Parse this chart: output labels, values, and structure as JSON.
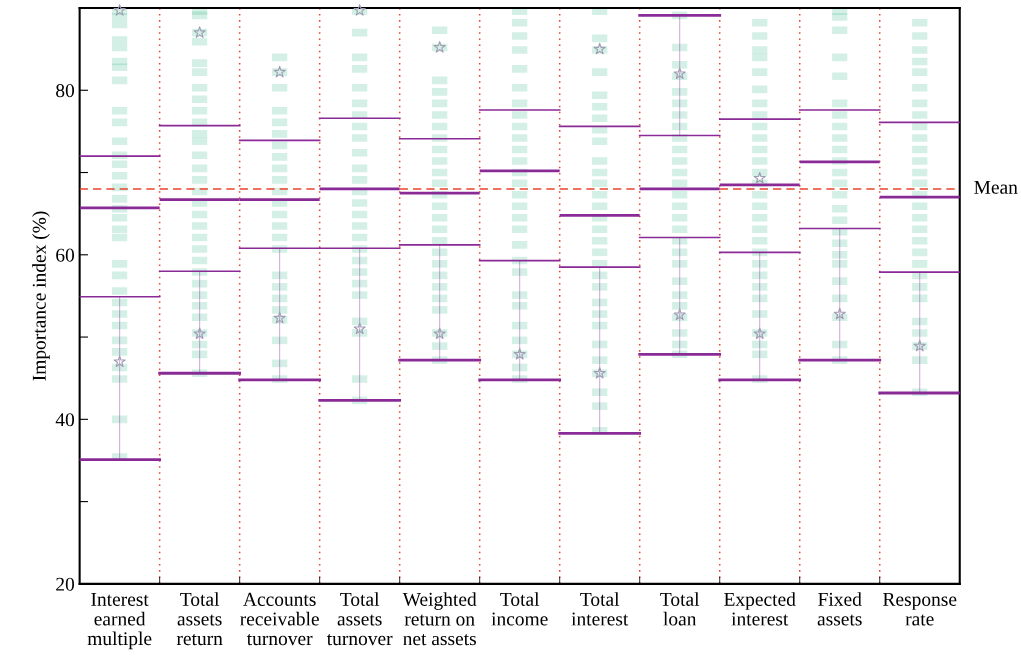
{
  "chart_data": {
    "type": "box",
    "ylabel": "Importance index (%)",
    "categories": [
      "Interest\nearned\nmultiple",
      "Total\nassets\nreturn",
      "Accounts\nreceivable\nturnover",
      "Total\nassets\nturnover",
      "Weighted\nreturn on\nnet assets",
      "Total\nincome",
      "Total\ninterest",
      "Total\nloan",
      "Expected\ninterest",
      "Fixed\nassets",
      "Response\nrate"
    ],
    "ylim": [
      20,
      90
    ],
    "yticks": [
      20,
      {
        "value": 30,
        "label": null
      },
      40,
      {
        "value": 50,
        "label": null
      },
      60,
      {
        "value": 70,
        "label": null
      },
      80
    ],
    "grid": "x",
    "ref_lines": [
      {
        "axis": "y",
        "value": 68,
        "label": "Mean",
        "color": "#e8452c",
        "line_style": "dashed"
      }
    ],
    "series": [
      {
        "type": "scatter",
        "marker": "square",
        "color": "#3cb48a",
        "x": [
          "Interest\nearned\nmultiple",
          "Interest\nearned\nmultiple",
          "Interest\nearned\nmultiple",
          "Interest\nearned\nmultiple",
          "Interest\nearned\nmultiple",
          "Interest\nearned\nmultiple",
          "Interest\nearned\nmultiple",
          "Interest\nearned\nmultiple",
          "Interest\nearned\nmultiple",
          "Interest\nearned\nmultiple",
          "Interest\nearned\nmultiple",
          "Interest\nearned\nmultiple",
          "Interest\nearned\nmultiple",
          "Interest\nearned\nmultiple",
          "Interest\nearned\nmultiple",
          "Interest\nearned\nmultiple",
          "Interest\nearned\nmultiple",
          "Interest\nearned\nmultiple",
          "Interest\nearned\nmultiple",
          "Interest\nearned\nmultiple",
          "Interest\nearned\nmultiple",
          "Interest\nearned\nmultiple",
          "Interest\nearned\nmultiple",
          "Interest\nearned\nmultiple",
          "Interest\nearned\nmultiple",
          "Interest\nearned\nmultiple",
          "Interest\nearned\nmultiple",
          "Interest\nearned\nmultiple",
          "Interest\nearned\nmultiple",
          "Interest\nearned\nmultiple",
          "Interest\nearned\nmultiple",
          "Interest\nearned\nmultiple",
          "Total\nassets\nreturn",
          "Total\nassets\nreturn",
          "Total\nassets\nreturn",
          "Total\nassets\nreturn",
          "Total\nassets\nreturn",
          "Total\nassets\nreturn",
          "Total\nassets\nreturn",
          "Total\nassets\nreturn",
          "Total\nassets\nreturn",
          "Total\nassets\nreturn",
          "Total\nassets\nreturn",
          "Total\nassets\nreturn",
          "Total\nassets\nreturn",
          "Total\nassets\nreturn",
          "Total\nassets\nreturn",
          "Total\nassets\nreturn",
          "Total\nassets\nreturn",
          "Total\nassets\nreturn",
          "Total\nassets\nreturn",
          "Total\nassets\nreturn",
          "Total\nassets\nreturn",
          "Total\nassets\nreturn",
          "Total\nassets\nreturn",
          "Total\nassets\nreturn",
          "Total\nassets\nreturn",
          "Total\nassets\nreturn",
          "Total\nassets\nreturn",
          "Total\nassets\nreturn",
          "Total\nassets\nreturn",
          "Total\nassets\nreturn",
          "Total\nassets\nreturn",
          "Accounts\nreceivable\nturnover",
          "Accounts\nreceivable\nturnover",
          "Accounts\nreceivable\nturnover",
          "Accounts\nreceivable\nturnover",
          "Accounts\nreceivable\nturnover",
          "Accounts\nreceivable\nturnover",
          "Accounts\nreceivable\nturnover",
          "Accounts\nreceivable\nturnover",
          "Accounts\nreceivable\nturnover",
          "Accounts\nreceivable\nturnover",
          "Accounts\nreceivable\nturnover",
          "Accounts\nreceivable\nturnover",
          "Accounts\nreceivable\nturnover",
          "Accounts\nreceivable\nturnover",
          "Accounts\nreceivable\nturnover",
          "Accounts\nreceivable\nturnover",
          "Accounts\nreceivable\nturnover",
          "Accounts\nreceivable\nturnover",
          "Accounts\nreceivable\nturnover",
          "Accounts\nreceivable\nturnover",
          "Accounts\nreceivable\nturnover",
          "Accounts\nreceivable\nturnover",
          "Accounts\nreceivable\nturnover",
          "Accounts\nreceivable\nturnover",
          "Total\nassets\nturnover",
          "Total\nassets\nturnover",
          "Total\nassets\nturnover",
          "Total\nassets\nturnover",
          "Total\nassets\nturnover",
          "Total\nassets\nturnover",
          "Total\nassets\nturnover",
          "Total\nassets\nturnover",
          "Total\nassets\nturnover",
          "Total\nassets\nturnover",
          "Total\nassets\nturnover",
          "Total\nassets\nturnover",
          "Total\nassets\nturnover",
          "Total\nassets\nturnover",
          "Total\nassets\nturnover",
          "Total\nassets\nturnover",
          "Total\nassets\nturnover",
          "Total\nassets\nturnover",
          "Total\nassets\nturnover",
          "Total\nassets\nturnover",
          "Total\nassets\nturnover",
          "Total\nassets\nturnover",
          "Total\nassets\nturnover",
          "Total\nassets\nturnover",
          "Total\nassets\nturnover",
          "Total\nassets\nturnover",
          "Weighted\nreturn on\nnet assets",
          "Weighted\nreturn on\nnet assets",
          "Weighted\nreturn on\nnet assets",
          "Weighted\nreturn on\nnet assets",
          "Weighted\nreturn on\nnet assets",
          "Weighted\nreturn on\nnet assets",
          "Weighted\nreturn on\nnet assets",
          "Weighted\nreturn on\nnet assets",
          "Weighted\nreturn on\nnet assets",
          "Weighted\nreturn on\nnet assets",
          "Weighted\nreturn on\nnet assets",
          "Weighted\nreturn on\nnet assets",
          "Weighted\nreturn on\nnet assets",
          "Weighted\nreturn on\nnet assets",
          "Weighted\nreturn on\nnet assets",
          "Weighted\nreturn on\nnet assets",
          "Weighted\nreturn on\nnet assets",
          "Weighted\nreturn on\nnet assets",
          "Weighted\nreturn on\nnet assets",
          "Weighted\nreturn on\nnet assets",
          "Weighted\nreturn on\nnet assets",
          "Weighted\nreturn on\nnet assets",
          "Weighted\nreturn on\nnet assets",
          "Weighted\nreturn on\nnet assets",
          "Weighted\nreturn on\nnet assets",
          "Weighted\nreturn on\nnet assets",
          "Total\nincome",
          "Total\nincome",
          "Total\nincome",
          "Total\nincome",
          "Total\nincome",
          "Total\nincome",
          "Total\nincome",
          "Total\nincome",
          "Total\nincome",
          "Total\nincome",
          "Total\nincome",
          "Total\nincome",
          "Total\nincome",
          "Total\nincome",
          "Total\nincome",
          "Total\nincome",
          "Total\nincome",
          "Total\nincome",
          "Total\nincome",
          "Total\nincome",
          "Total\nincome",
          "Total\nincome",
          "Total\nincome",
          "Total\nincome",
          "Total\nincome",
          "Total\nincome",
          "Total\nincome",
          "Total\nincome",
          "Total\ninterest",
          "Total\ninterest",
          "Total\ninterest",
          "Total\ninterest",
          "Total\ninterest",
          "Total\ninterest",
          "Total\ninterest",
          "Total\ninterest",
          "Total\ninterest",
          "Total\ninterest",
          "Total\ninterest",
          "Total\ninterest",
          "Total\ninterest",
          "Total\ninterest",
          "Total\ninterest",
          "Total\ninterest",
          "Total\ninterest",
          "Total\ninterest",
          "Total\ninterest",
          "Total\ninterest",
          "Total\ninterest",
          "Total\ninterest",
          "Total\ninterest",
          "Total\ninterest",
          "Total\ninterest",
          "Total\ninterest",
          "Total\ninterest",
          "Total\ninterest",
          "Total\ninterest",
          "Total\ninterest",
          "Total\nloan",
          "Total\nloan",
          "Total\nloan",
          "Total\nloan",
          "Total\nloan",
          "Total\nloan",
          "Total\nloan",
          "Total\nloan",
          "Total\nloan",
          "Total\nloan",
          "Total\nloan",
          "Total\nloan",
          "Total\nloan",
          "Total\nloan",
          "Total\nloan",
          "Total\nloan",
          "Total\nloan",
          "Total\nloan",
          "Total\nloan",
          "Total\nloan",
          "Total\nloan",
          "Total\nloan",
          "Total\nloan",
          "Total\nloan",
          "Total\nloan",
          "Total\nloan",
          "Total\nloan",
          "Expected\ninterest",
          "Expected\ninterest",
          "Expected\ninterest",
          "Expected\ninterest",
          "Expected\ninterest",
          "Expected\ninterest",
          "Expected\ninterest",
          "Expected\ninterest",
          "Expected\ninterest",
          "Expected\ninterest",
          "Expected\ninterest",
          "Expected\ninterest",
          "Expected\ninterest",
          "Expected\ninterest",
          "Expected\ninterest",
          "Expected\ninterest",
          "Expected\ninterest",
          "Expected\ninterest",
          "Expected\ninterest",
          "Expected\ninterest",
          "Expected\ninterest",
          "Expected\ninterest",
          "Expected\ninterest",
          "Expected\ninterest",
          "Expected\ninterest",
          "Expected\ninterest",
          "Expected\ninterest",
          "Expected\ninterest",
          "Expected\ninterest",
          "Fixed\nassets",
          "Fixed\nassets",
          "Fixed\nassets",
          "Fixed\nassets",
          "Fixed\nassets",
          "Fixed\nassets",
          "Fixed\nassets",
          "Fixed\nassets",
          "Fixed\nassets",
          "Fixed\nassets",
          "Fixed\nassets",
          "Fixed\nassets",
          "Fixed\nassets",
          "Fixed\nassets",
          "Fixed\nassets",
          "Fixed\nassets",
          "Fixed\nassets",
          "Fixed\nassets",
          "Fixed\nassets",
          "Fixed\nassets",
          "Fixed\nassets",
          "Fixed\nassets",
          "Fixed\nassets",
          "Fixed\nassets",
          "Fixed\nassets",
          "Response\nrate",
          "Response\nrate",
          "Response\nrate",
          "Response\nrate",
          "Response\nrate",
          "Response\nrate",
          "Response\nrate",
          "Response\nrate",
          "Response\nrate",
          "Response\nrate",
          "Response\nrate",
          "Response\nrate",
          "Response\nrate",
          "Response\nrate",
          "Response\nrate",
          "Response\nrate",
          "Response\nrate",
          "Response\nrate",
          "Response\nrate",
          "Response\nrate",
          "Response\nrate",
          "Response\nrate",
          "Response\nrate",
          "Response\nrate",
          "Response\nrate",
          "Response\nrate",
          "Response\nrate",
          "Response\nrate",
          "Response\nrate"
        ],
        "values": [
          89.6,
          88.9,
          88.0,
          86.1,
          85.2,
          83.5,
          82.8,
          81.2,
          77.5,
          76.1,
          73.8,
          72.1,
          71.0,
          69.6,
          68.2,
          66.8,
          65.6,
          64.5,
          63.1,
          62.1,
          58.9,
          57.5,
          55.6,
          54.2,
          52.8,
          51.4,
          49.6,
          48.2,
          46.3,
          44.9,
          40.0,
          35.4,
          89.6,
          89.1,
          87.0,
          85.9,
          83.3,
          82.2,
          80.3,
          78.9,
          77.5,
          76.1,
          74.7,
          73.8,
          72.1,
          70.5,
          69.1,
          67.7,
          66.3,
          64.9,
          63.5,
          62.1,
          60.7,
          59.3,
          57.9,
          56.5,
          55.1,
          53.8,
          52.4,
          50.5,
          49.1,
          47.9,
          45.6,
          84.0,
          82.2,
          80.3,
          77.5,
          76.1,
          74.7,
          73.3,
          71.9,
          70.5,
          69.1,
          67.7,
          66.3,
          64.9,
          63.5,
          62.1,
          60.7,
          57.5,
          56.1,
          54.7,
          53.3,
          52.1,
          49.6,
          46.8,
          44.9,
          89.6,
          87.0,
          84.0,
          82.6,
          80.3,
          78.4,
          77.0,
          75.6,
          74.2,
          72.4,
          70.5,
          69.1,
          67.7,
          66.3,
          64.9,
          63.5,
          62.1,
          60.7,
          59.3,
          57.9,
          56.5,
          55.1,
          51.9,
          50.5,
          44.9,
          42.3,
          87.3,
          85.2,
          81.2,
          79.8,
          78.4,
          77.0,
          75.6,
          74.2,
          72.8,
          71.4,
          70.0,
          68.7,
          67.3,
          65.9,
          64.5,
          63.1,
          61.7,
          60.3,
          58.9,
          57.5,
          56.1,
          54.7,
          53.3,
          50.5,
          48.9,
          47.2,
          89.6,
          88.2,
          86.6,
          84.9,
          82.6,
          80.3,
          78.4,
          77.0,
          75.6,
          74.2,
          72.8,
          71.4,
          70.0,
          68.7,
          67.3,
          65.9,
          64.5,
          63.1,
          61.2,
          59.3,
          57.9,
          55.1,
          53.8,
          51.4,
          49.6,
          47.9,
          46.3,
          44.9,
          89.6,
          86.3,
          84.9,
          82.2,
          79.4,
          78.0,
          76.6,
          75.2,
          73.8,
          71.4,
          70.0,
          68.7,
          67.3,
          65.9,
          64.5,
          63.1,
          61.7,
          60.3,
          58.9,
          57.5,
          56.1,
          54.2,
          52.8,
          51.4,
          49.1,
          47.2,
          45.6,
          43.3,
          41.6,
          38.6,
          89.1,
          85.2,
          83.1,
          81.7,
          79.8,
          78.4,
          77.0,
          75.6,
          74.2,
          72.8,
          71.4,
          70.0,
          68.7,
          67.3,
          65.9,
          64.5,
          63.1,
          61.7,
          60.3,
          58.9,
          56.8,
          55.1,
          53.8,
          52.4,
          50.5,
          49.1,
          47.9,
          88.2,
          86.6,
          84.9,
          84.0,
          82.2,
          80.1,
          78.4,
          77.0,
          75.6,
          74.2,
          72.8,
          71.4,
          70.0,
          68.7,
          67.3,
          65.9,
          64.5,
          63.1,
          61.7,
          60.3,
          58.9,
          57.5,
          56.1,
          54.7,
          52.8,
          50.5,
          49.1,
          47.9,
          44.9,
          89.6,
          88.9,
          87.3,
          84.0,
          81.7,
          78.4,
          77.0,
          75.6,
          74.2,
          72.8,
          71.4,
          70.0,
          68.7,
          67.3,
          65.6,
          64.2,
          62.8,
          61.4,
          60.0,
          58.9,
          56.8,
          54.7,
          52.4,
          49.1,
          47.2,
          88.2,
          86.6,
          84.9,
          83.5,
          82.2,
          80.3,
          78.4,
          77.0,
          75.6,
          74.2,
          72.8,
          71.4,
          70.0,
          68.7,
          67.3,
          65.9,
          64.5,
          63.1,
          61.7,
          60.3,
          58.9,
          57.5,
          56.1,
          54.7,
          51.9,
          50.5,
          48.9,
          47.2,
          43.3
        ]
      },
      {
        "type": "scatter",
        "marker": "star",
        "color": "#a09cb4",
        "x": [
          "Interest\nearned\nmultiple",
          "Interest\nearned\nmultiple",
          "Total\nassets\nreturn",
          "Total\nassets\nreturn",
          "Accounts\nreceivable\nturnover",
          "Accounts\nreceivable\nturnover",
          "Total\nassets\nturnover",
          "Total\nassets\nturnover",
          "Weighted\nreturn on\nnet assets",
          "Weighted\nreturn on\nnet assets",
          "Total\nincome",
          "Total\ninterest",
          "Total\ninterest",
          "Total\nloan",
          "Total\nloan",
          "Expected\ninterest",
          "Expected\ninterest",
          "Fixed\nassets",
          "Response\nrate"
        ],
        "values": [
          89.7,
          47.0,
          87.0,
          50.4,
          82.2,
          52.3,
          89.7,
          51.0,
          85.2,
          50.4,
          47.9,
          85.0,
          45.6,
          82.0,
          52.7,
          69.3,
          50.4,
          52.8,
          48.9
        ]
      },
      {
        "color": "#8a2a96",
        "boxes": [
          {
            "low": 35.1,
            "q1": 54.9,
            "median": 65.7,
            "q3": 72.0
          },
          {
            "low": 45.6,
            "q1": 58.0,
            "median": 66.7,
            "q3": 75.7
          },
          {
            "low": 44.8,
            "q1": 60.8,
            "median": 66.7,
            "q3": 73.9
          },
          {
            "low": 42.3,
            "q1": 60.8,
            "median": 68.0,
            "q3": 76.6
          },
          {
            "low": 47.2,
            "q1": 61.2,
            "median": 67.5,
            "q3": 74.1
          },
          {
            "low": 44.8,
            "q1": 59.3,
            "median": 70.2,
            "q3": 77.6
          },
          {
            "low": 38.3,
            "q1": 58.5,
            "median": 64.8,
            "q3": 75.6
          },
          {
            "low": 47.9,
            "q1": 62.1,
            "median": 68.0,
            "q3": 74.5,
            "high": 89.1
          },
          {
            "low": 44.8,
            "q1": 60.3,
            "median": 68.5,
            "q3": 76.5
          },
          {
            "low": 47.2,
            "q1": 63.2,
            "median": 71.3,
            "q3": 77.6
          },
          {
            "low": 43.2,
            "q1": 57.9,
            "median": 67.0,
            "q3": 76.1
          }
        ]
      }
    ]
  }
}
